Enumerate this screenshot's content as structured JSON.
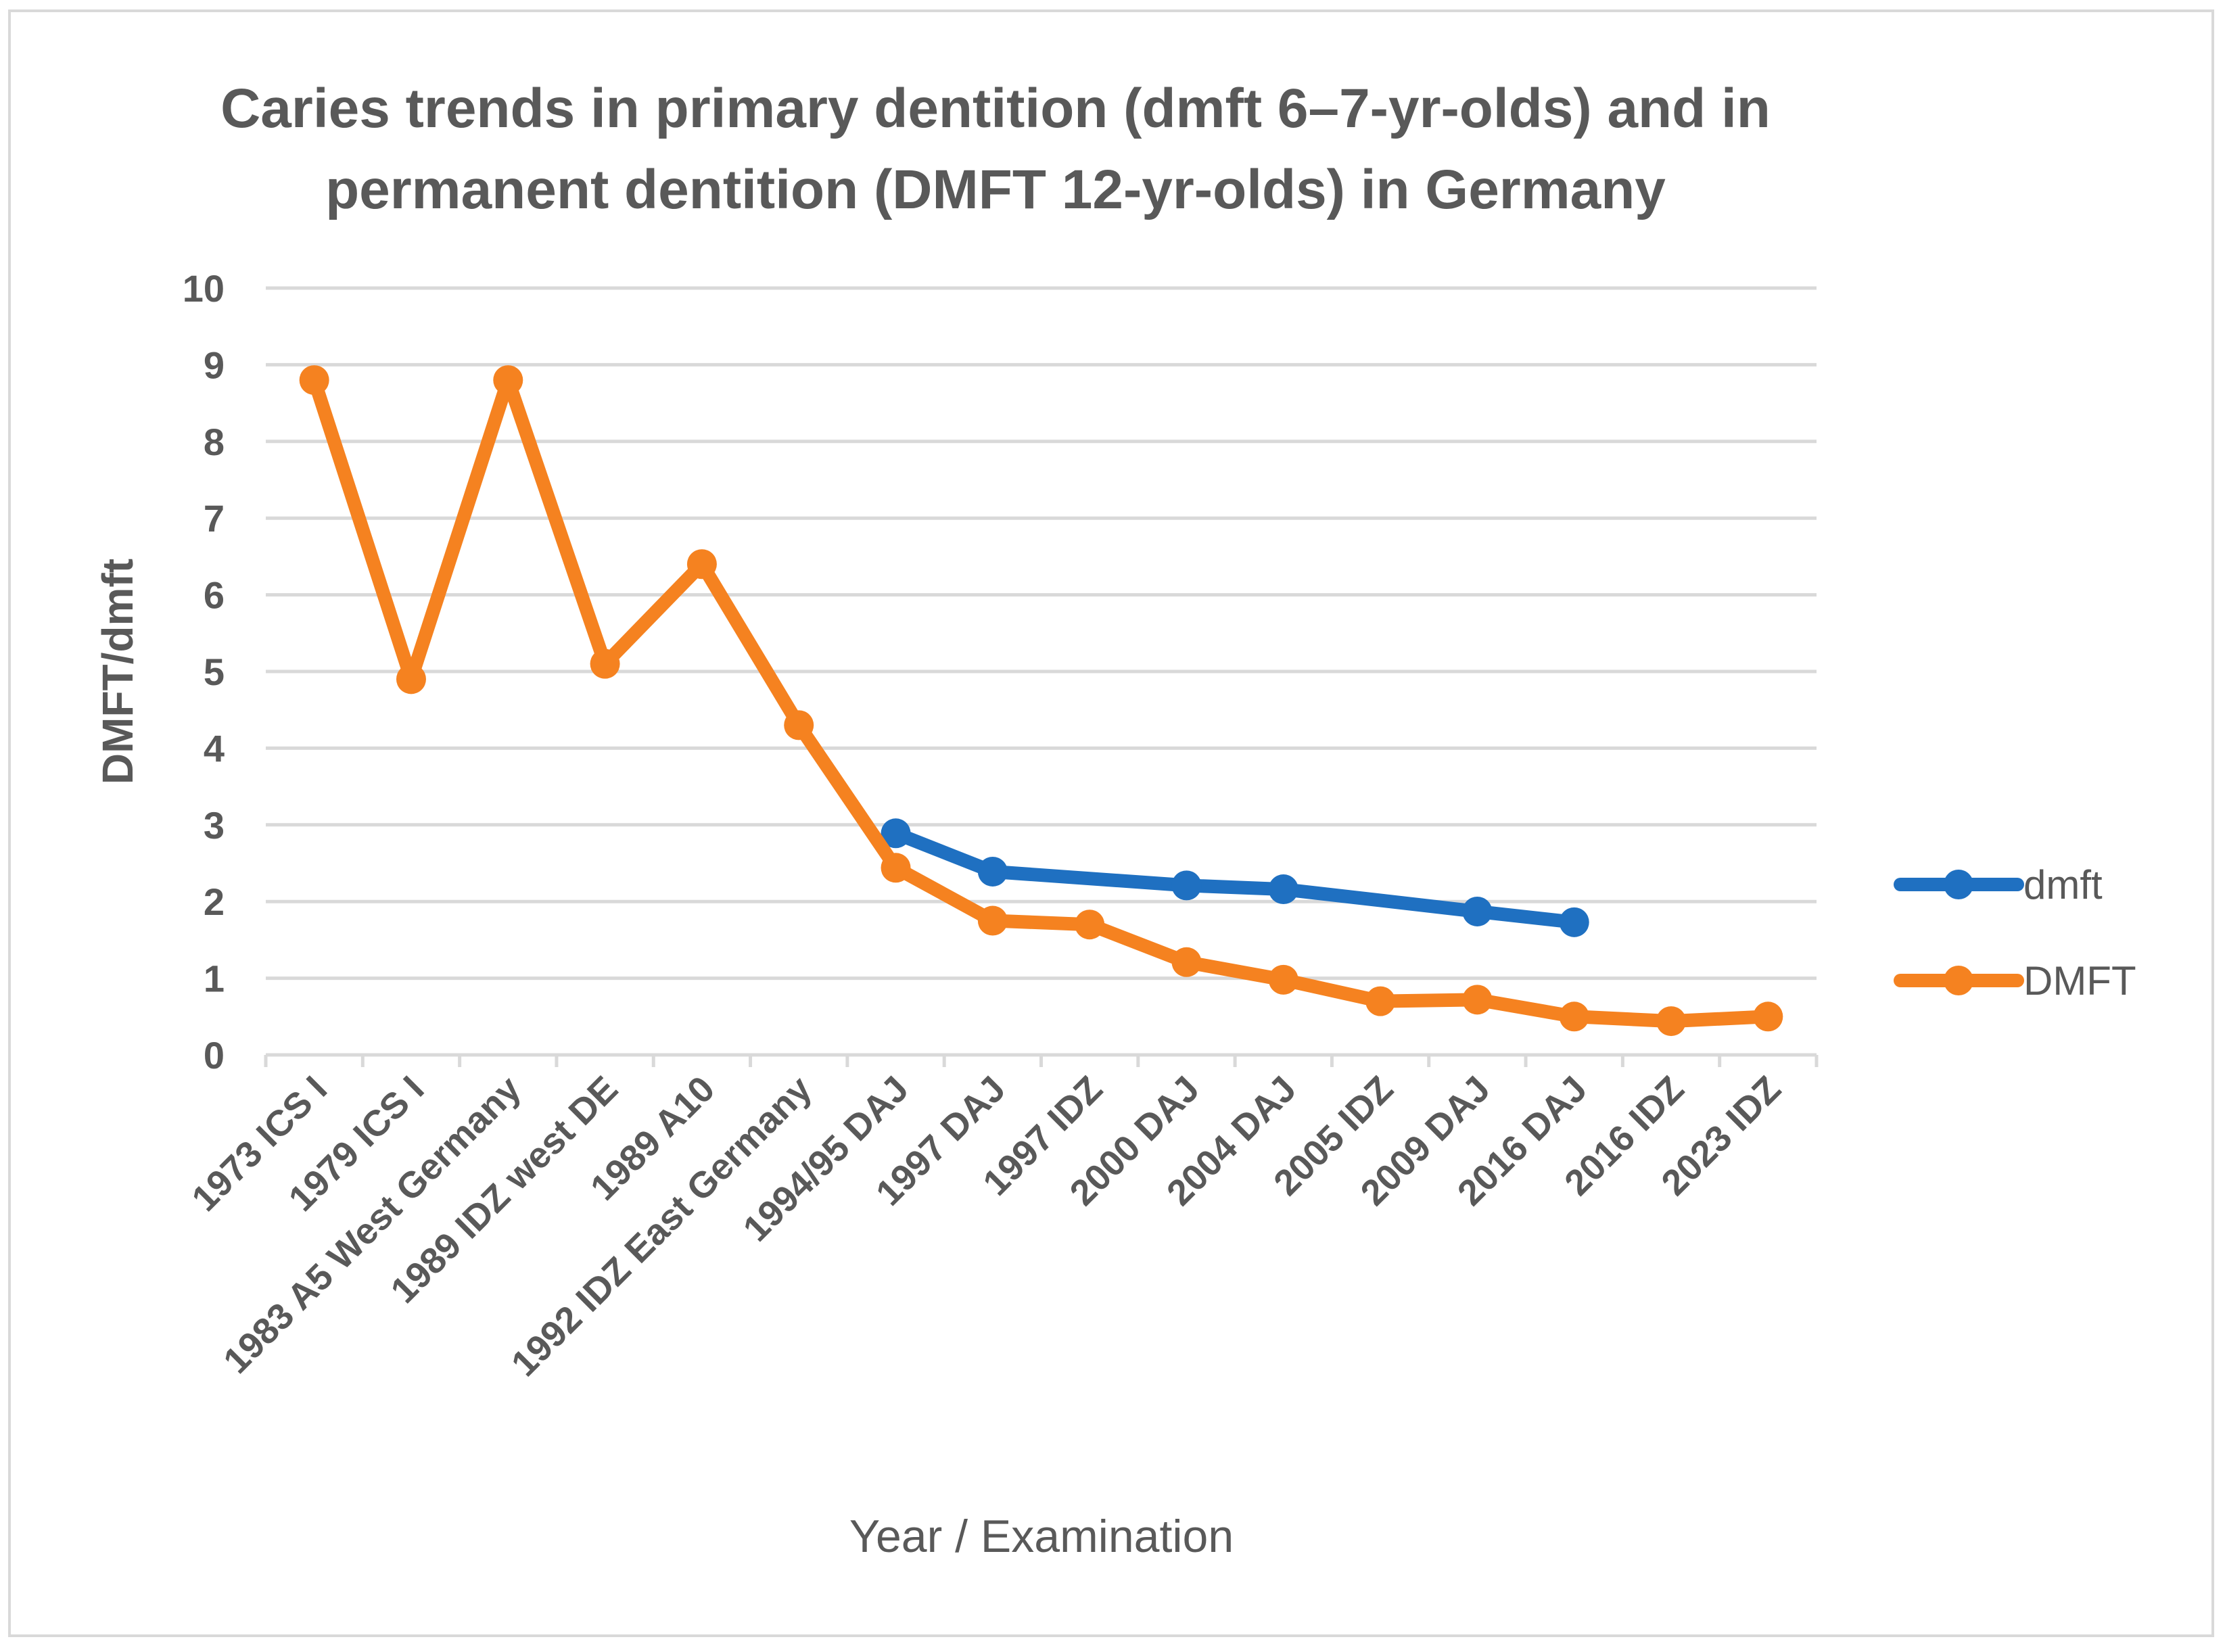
{
  "chart_data": {
    "type": "line",
    "title_lines": [
      "Caries trends in primary dentition (dmft 6–7-yr-olds) and in",
      "permanent dentition (DMFT 12-yr-olds) in Germany"
    ],
    "xlabel": "Year / Examination",
    "ylabel": "DMFT/dmft",
    "ylim": [
      0,
      10
    ],
    "yticks": [
      "0",
      "1",
      "2",
      "3",
      "4",
      "5",
      "6",
      "7",
      "8",
      "9",
      "10"
    ],
    "grid": true,
    "legend_position": "right",
    "categories": [
      "1973 ICS I",
      "1979 ICS I",
      "1983 A5 West Germany",
      "1989 IDZ west DE",
      "1989 A10",
      "1992 IDZ East Germany",
      "1994/95 DAJ",
      "1997 DAJ",
      "1997 IDZ",
      "2000 DAJ",
      "2004 DAJ",
      "2005 IDZ",
      "2009 DAJ",
      "2016 DAJ",
      "2016 IDZ",
      "2023 IDZ"
    ],
    "series": [
      {
        "name": "dmft",
        "color": "#1f70c1",
        "values": [
          null,
          null,
          null,
          null,
          null,
          null,
          2.89,
          2.39,
          null,
          2.21,
          2.16,
          null,
          1.87,
          1.73,
          null,
          null
        ]
      },
      {
        "name": "DMFT",
        "color": "#f58220",
        "values": [
          8.8,
          4.9,
          8.8,
          5.1,
          6.4,
          4.3,
          2.44,
          1.75,
          1.7,
          1.21,
          0.98,
          0.7,
          0.72,
          0.5,
          0.44,
          0.5
        ]
      }
    ]
  }
}
